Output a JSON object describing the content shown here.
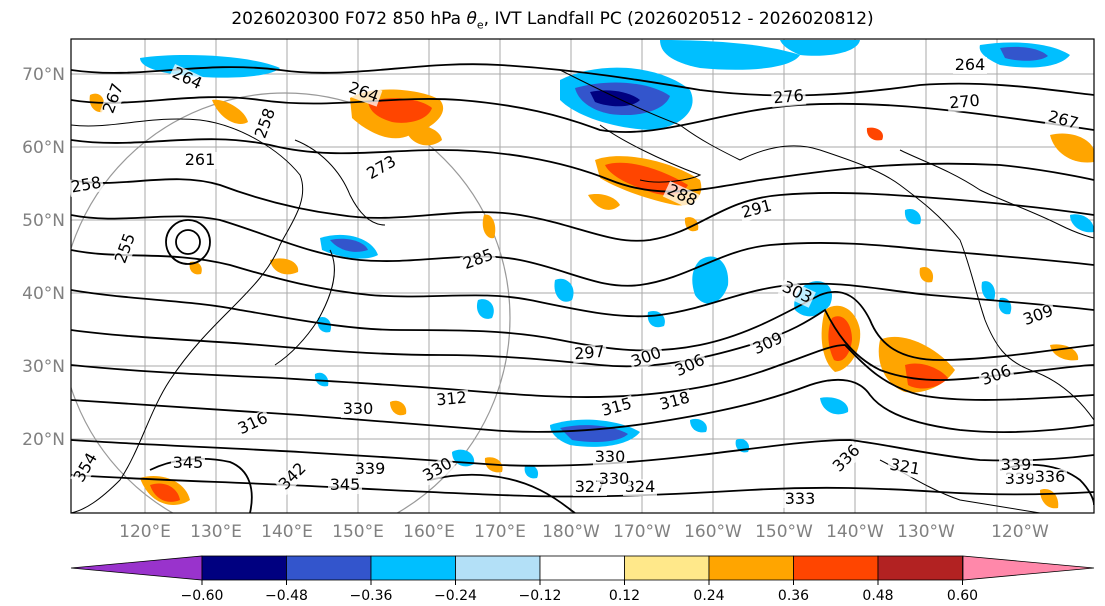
{
  "title_main": "2026020300 F072 850 hPa ",
  "title_symbol": "θ",
  "title_sub": "e",
  "title_rest": ", IVT Landfall PC (2026020512 - 2026020812)",
  "map": {
    "lat_labels": [
      "70°N",
      "60°N",
      "50°N",
      "40°N",
      "30°N",
      "20°N"
    ],
    "lon_labels": [
      "120°E",
      "130°E",
      "140°E",
      "150°E",
      "160°E",
      "170°E",
      "180°W",
      "170°W",
      "160°W",
      "150°W",
      "140°W",
      "130°W",
      "120°W"
    ],
    "contour_labels": [
      "267",
      "264",
      "264",
      "276",
      "270",
      "267",
      "264",
      "258",
      "255",
      "261",
      "258",
      "273",
      "288",
      "291",
      "285",
      "303",
      "309",
      "297",
      "300",
      "306",
      "309",
      "306",
      "315",
      "318",
      "312",
      "330",
      "316",
      "345",
      "342",
      "339",
      "345",
      "330",
      "330",
      "327",
      "324",
      "336",
      "339",
      "330",
      "333",
      "321",
      "339",
      "336",
      "354"
    ]
  },
  "colorbar": {
    "colors": [
      "#9933cc",
      "#000080",
      "#3355cc",
      "#00bfff",
      "#b3e0f7",
      "#ffffff",
      "#ffe88a",
      "#ffa500",
      "#ff4500",
      "#b22222",
      "#ff88aa"
    ],
    "tick_labels": [
      "−0.60",
      "−0.48",
      "−0.36",
      "−0.24",
      "−0.12",
      "0.12",
      "0.24",
      "0.36",
      "0.48",
      "0.60"
    ]
  }
}
